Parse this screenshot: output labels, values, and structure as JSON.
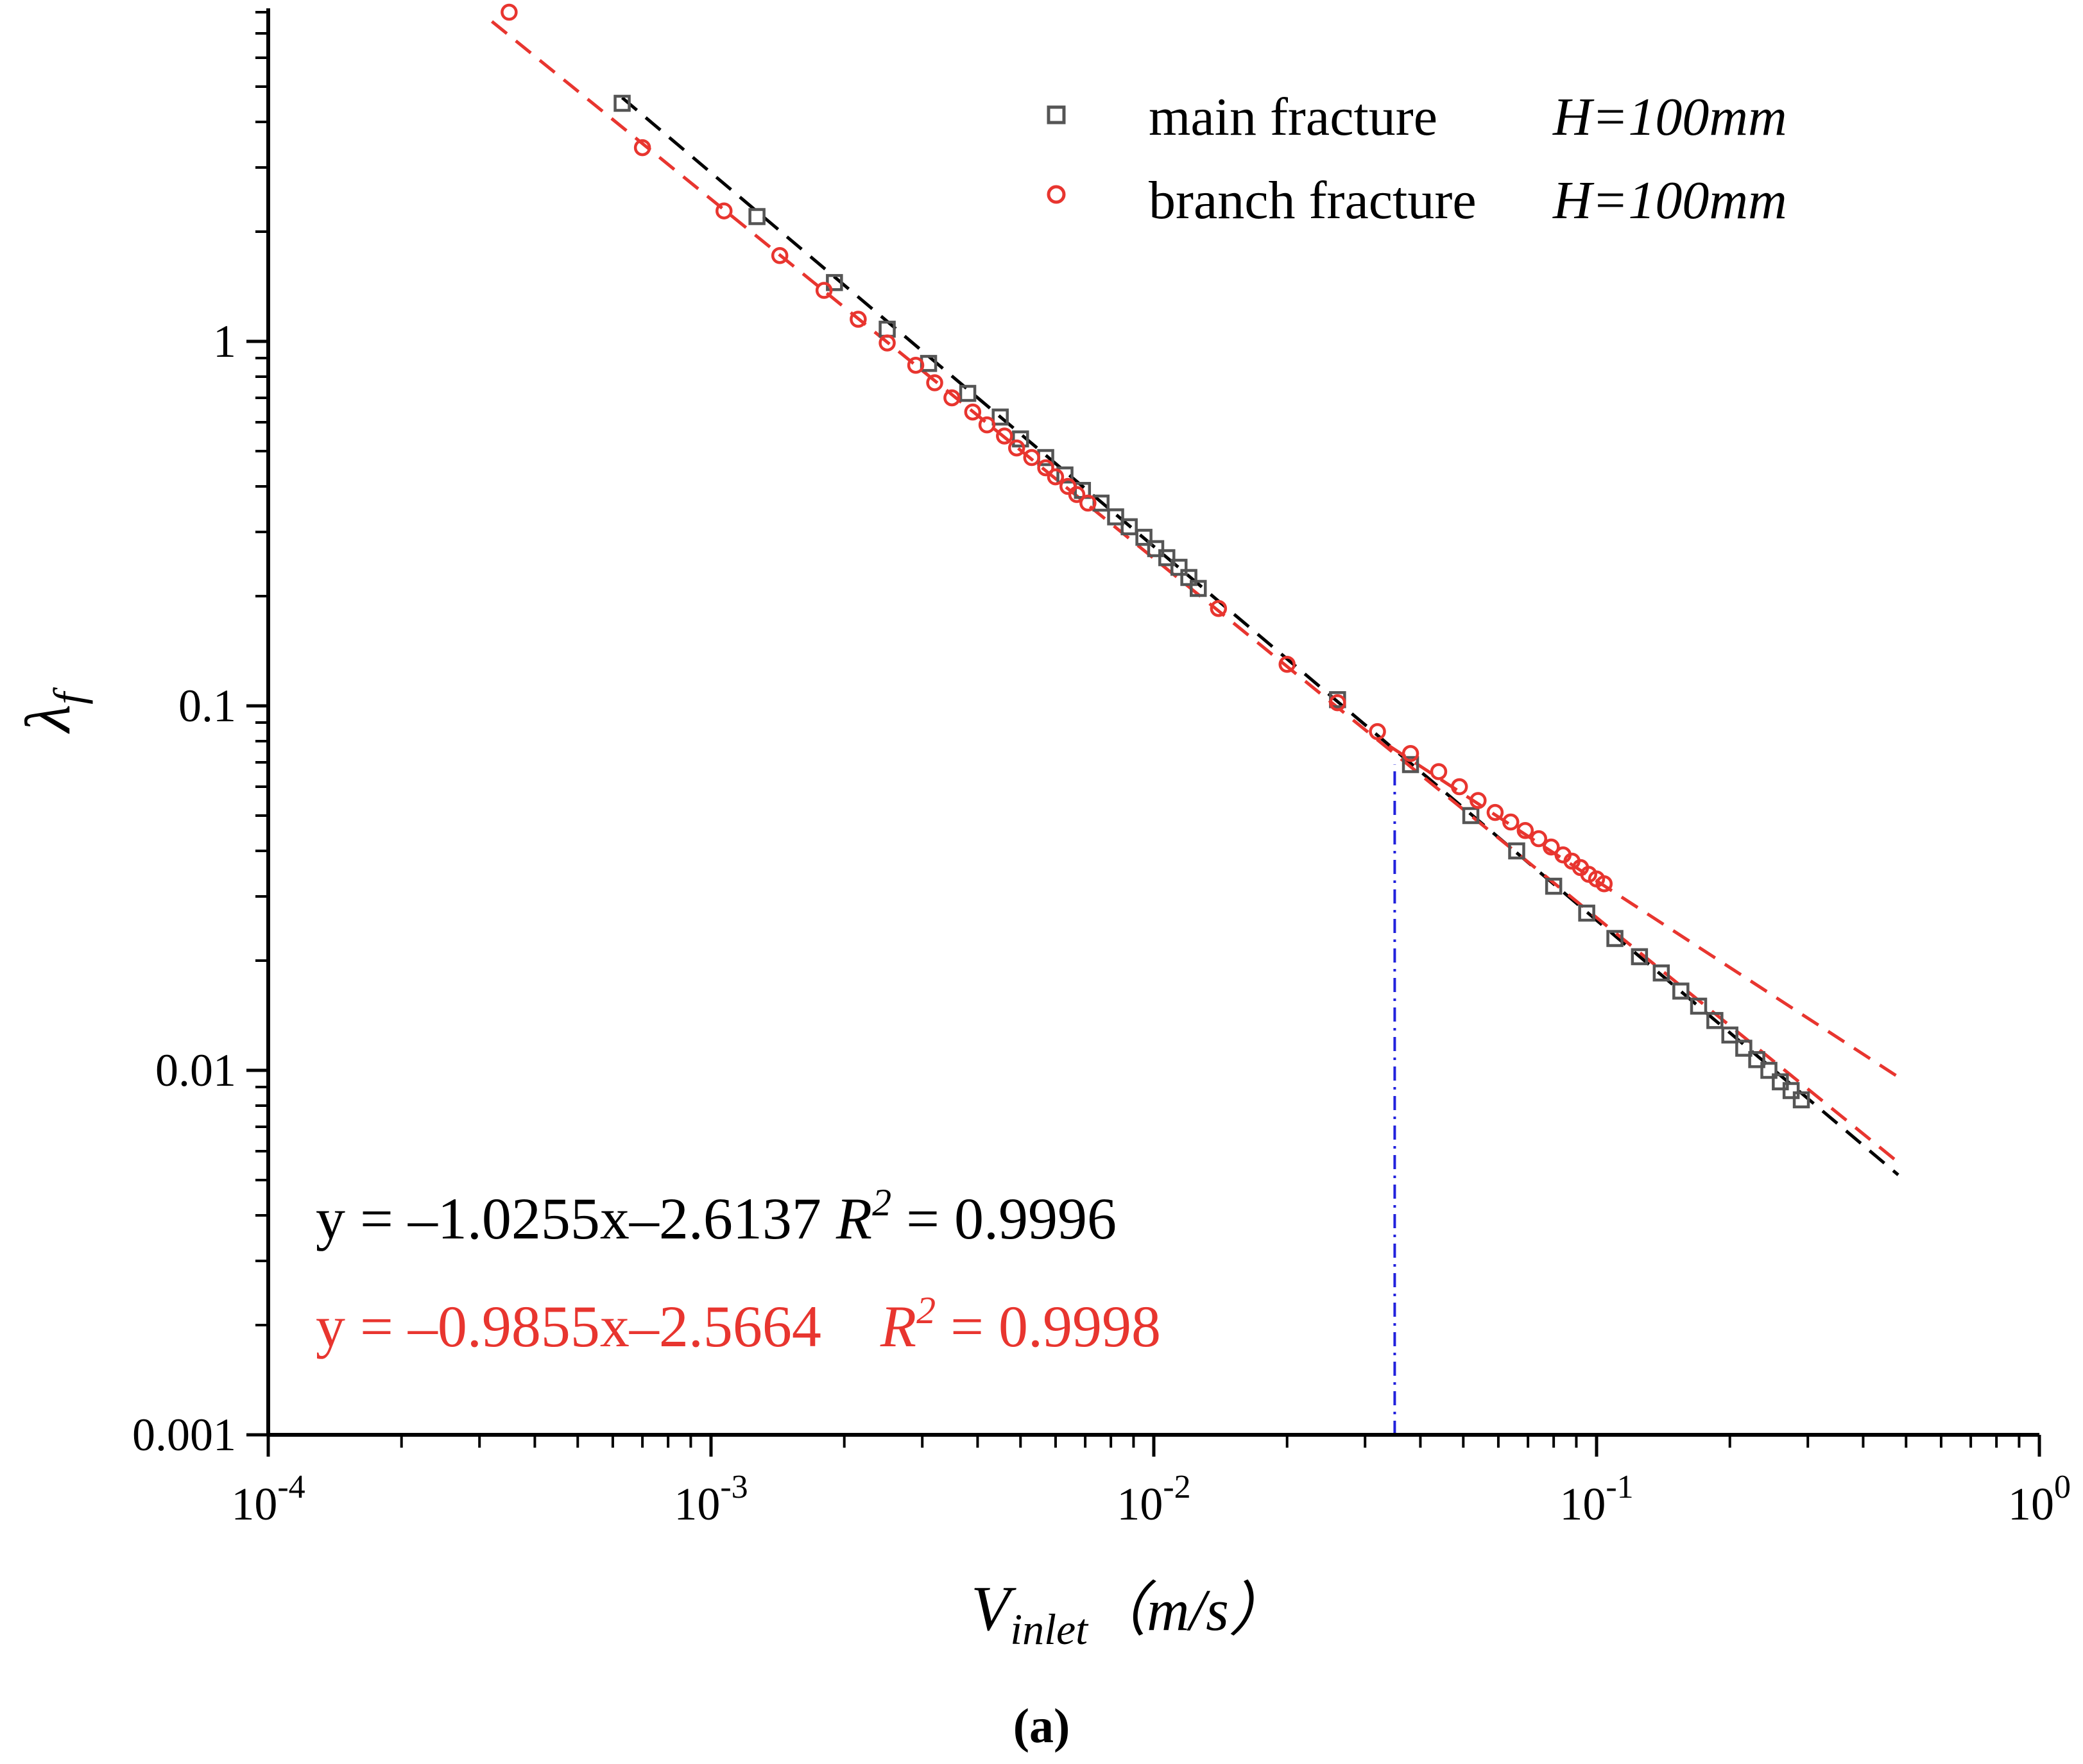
{
  "chart_data": {
    "type": "scatter",
    "caption": "(a)",
    "xlabel": {
      "base": "V",
      "sub": "inlet",
      "unit": "（m/s）"
    },
    "ylabel": {
      "base": "λ",
      "sub": "f"
    },
    "xscale": "log",
    "yscale": "log",
    "xlim": [
      0.0001,
      1
    ],
    "ylim": [
      0.001,
      8
    ],
    "x_ticks": [
      {
        "value": 0.0001,
        "base": "10",
        "exp": "-4"
      },
      {
        "value": 0.001,
        "base": "10",
        "exp": "-3"
      },
      {
        "value": 0.01,
        "base": "10",
        "exp": "-2"
      },
      {
        "value": 0.1,
        "base": "10",
        "exp": "-1"
      },
      {
        "value": 1,
        "base": "10",
        "exp": "0"
      }
    ],
    "y_ticks": [
      {
        "value": 0.001,
        "label": "0.001"
      },
      {
        "value": 0.01,
        "label": "0.01"
      },
      {
        "value": 0.1,
        "label": "0.1"
      },
      {
        "value": 1,
        "label": "1"
      }
    ],
    "legend_position": "top-right",
    "series": [
      {
        "name": "main fracture",
        "legend_label": "main fracture",
        "param_label": "H=100mm",
        "marker": "square",
        "color": "#555555",
        "points": [
          [
            0.00063,
            4.5
          ],
          [
            0.00127,
            2.2
          ],
          [
            0.0019,
            1.45
          ],
          [
            0.0025,
            1.08
          ],
          [
            0.0031,
            0.87
          ],
          [
            0.0038,
            0.72
          ],
          [
            0.0045,
            0.62
          ],
          [
            0.005,
            0.54
          ],
          [
            0.0057,
            0.48
          ],
          [
            0.0063,
            0.43
          ],
          [
            0.0069,
            0.39
          ],
          [
            0.0076,
            0.36
          ],
          [
            0.0082,
            0.33
          ],
          [
            0.0088,
            0.31
          ],
          [
            0.0095,
            0.29
          ],
          [
            0.0101,
            0.27
          ],
          [
            0.0107,
            0.255
          ],
          [
            0.0114,
            0.24
          ],
          [
            0.012,
            0.225
          ],
          [
            0.0126,
            0.21
          ],
          [
            0.026,
            0.104
          ],
          [
            0.038,
            0.069
          ],
          [
            0.052,
            0.05
          ],
          [
            0.066,
            0.04
          ],
          [
            0.08,
            0.032
          ],
          [
            0.095,
            0.027
          ],
          [
            0.11,
            0.023
          ],
          [
            0.125,
            0.0205
          ],
          [
            0.14,
            0.0185
          ],
          [
            0.155,
            0.0165
          ],
          [
            0.17,
            0.015
          ],
          [
            0.185,
            0.0137
          ],
          [
            0.2,
            0.0125
          ],
          [
            0.215,
            0.0115
          ],
          [
            0.23,
            0.0107
          ],
          [
            0.245,
            0.01
          ],
          [
            0.26,
            0.0093
          ],
          [
            0.275,
            0.0088
          ],
          [
            0.29,
            0.0083
          ]
        ]
      },
      {
        "name": "branch fracture",
        "legend_label": "branch fracture",
        "param_label": "H=100mm",
        "marker": "circle",
        "color": "#e8352f",
        "points": [
          [
            0.00035,
            8.0
          ],
          [
            0.0007,
            3.4
          ],
          [
            0.00107,
            2.28
          ],
          [
            0.00143,
            1.72
          ],
          [
            0.0018,
            1.38
          ],
          [
            0.00215,
            1.15
          ],
          [
            0.0025,
            0.99
          ],
          [
            0.0029,
            0.86
          ],
          [
            0.0032,
            0.77
          ],
          [
            0.0035,
            0.7
          ],
          [
            0.0039,
            0.64
          ],
          [
            0.0042,
            0.59
          ],
          [
            0.0046,
            0.55
          ],
          [
            0.0049,
            0.51
          ],
          [
            0.0053,
            0.48
          ],
          [
            0.0057,
            0.45
          ],
          [
            0.006,
            0.425
          ],
          [
            0.0064,
            0.4
          ],
          [
            0.0067,
            0.38
          ],
          [
            0.0071,
            0.36
          ],
          [
            0.014,
            0.185
          ],
          [
            0.02,
            0.13
          ],
          [
            0.026,
            0.102
          ],
          [
            0.032,
            0.085
          ],
          [
            0.038,
            0.074
          ],
          [
            0.044,
            0.066
          ],
          [
            0.049,
            0.06
          ],
          [
            0.054,
            0.055
          ],
          [
            0.059,
            0.051
          ],
          [
            0.064,
            0.048
          ],
          [
            0.069,
            0.0455
          ],
          [
            0.074,
            0.0432
          ],
          [
            0.079,
            0.041
          ],
          [
            0.084,
            0.039
          ],
          [
            0.088,
            0.0375
          ],
          [
            0.092,
            0.036
          ],
          [
            0.096,
            0.0345
          ],
          [
            0.1,
            0.0335
          ],
          [
            0.104,
            0.0325
          ]
        ]
      }
    ],
    "fit_lines": [
      {
        "name": "main-fit-low",
        "color": "#000000",
        "slope": -1.0255,
        "intercept": -2.6137,
        "x_range": [
          0.00063,
          0.48
        ]
      },
      {
        "name": "branch-fit-low",
        "color": "#e8352f",
        "slope": -0.9855,
        "intercept": -2.5664,
        "x_range": [
          0.00032,
          0.48
        ]
      },
      {
        "name": "branch-fit-high",
        "color": "#e8352f",
        "slope": -0.79,
        "intercept": -2.27,
        "x_range": [
          0.034,
          0.48
        ]
      }
    ],
    "threshold": {
      "x": 0.035,
      "y_top": 0.069,
      "color": "#2222dd"
    },
    "equations": [
      {
        "text": "y = –1.0255x–2.6137",
        "r2_label": "R",
        "r2_exp": "2",
        "r2_value": " = 0.9996",
        "color": "#000000"
      },
      {
        "text": "y = –0.9855x–2.5664",
        "r2_label": "R",
        "r2_exp": "2",
        "r2_value": " = 0.9998",
        "color": "#e8352f"
      }
    ]
  }
}
